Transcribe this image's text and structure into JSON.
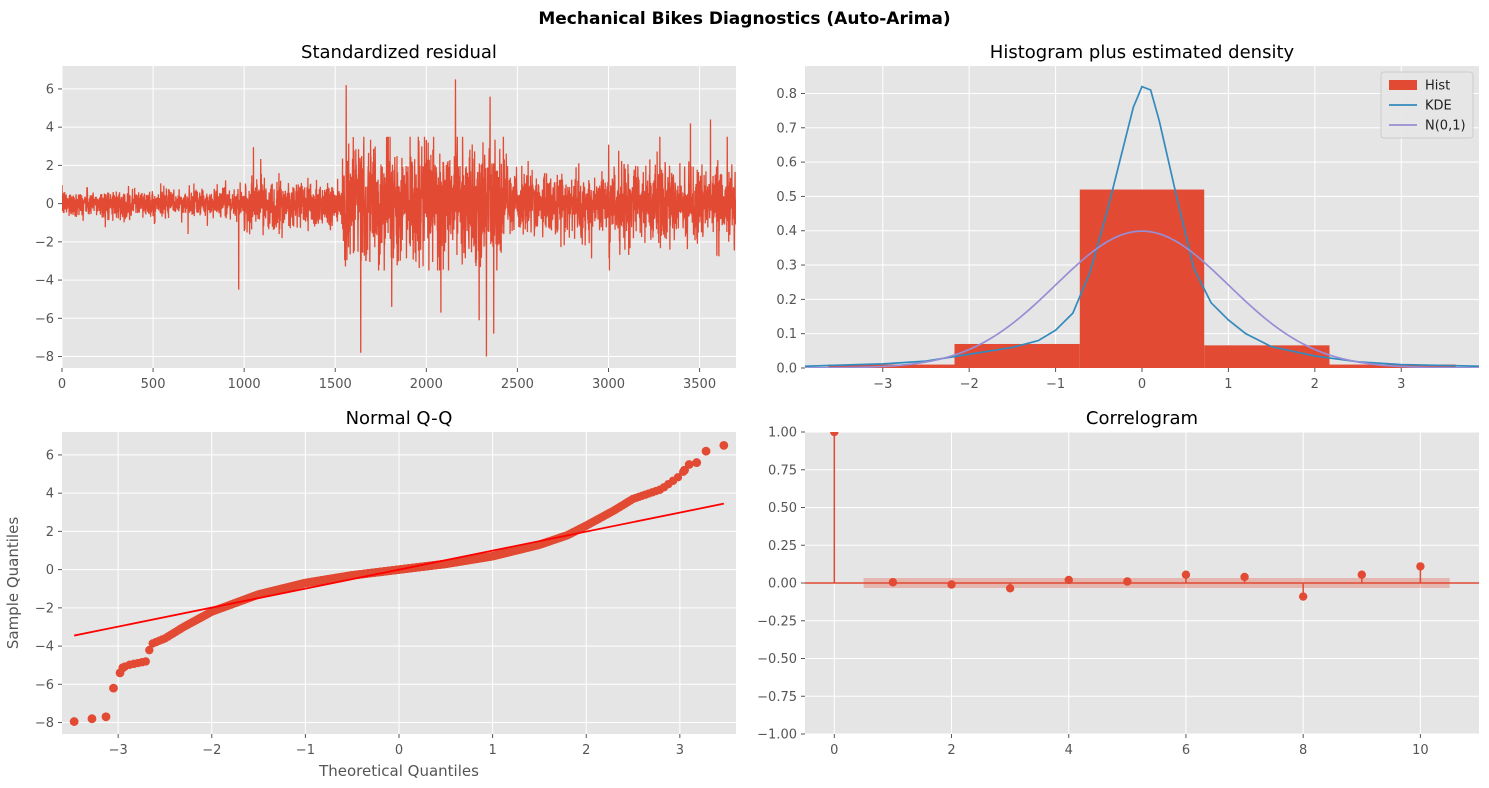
{
  "figure_title": "Mechanical Bikes Diagnostics (Auto-Arima)",
  "colors": {
    "axes_bg": "#e5e5e5",
    "grid": "#ffffff",
    "red": "#e24a33",
    "blue": "#348abd",
    "purple": "#988ed5",
    "qq_line": "#ff0000",
    "tick_text": "#555555"
  },
  "chart_data": [
    {
      "id": "resid",
      "type": "line",
      "title": "Standardized residual",
      "xlabel": "",
      "ylabel": "",
      "xlim": [
        0,
        3700
      ],
      "ylim": [
        -8.6,
        7.2
      ],
      "xticks": [
        0,
        500,
        1000,
        1500,
        2000,
        2500,
        3000,
        3500
      ],
      "yticks": [
        -8,
        -6,
        -4,
        -2,
        0,
        2,
        4,
        6
      ],
      "grid": true,
      "n_points": 3700,
      "regimes": [
        {
          "x": [
            0,
            1000
          ],
          "scale": 0.35
        },
        {
          "x": [
            1000,
            1540
          ],
          "scale": 0.65
        },
        {
          "x": [
            1540,
            2450
          ],
          "scale": 1.45
        },
        {
          "x": [
            2450,
            3000
          ],
          "scale": 0.8
        },
        {
          "x": [
            3000,
            3700
          ],
          "scale": 0.95
        }
      ],
      "notable_points": [
        {
          "x": 970,
          "y": -4.5
        },
        {
          "x": 1560,
          "y": 6.2
        },
        {
          "x": 1640,
          "y": -7.8
        },
        {
          "x": 1810,
          "y": -5.4
        },
        {
          "x": 2080,
          "y": -5.7
        },
        {
          "x": 2160,
          "y": 6.5
        },
        {
          "x": 2290,
          "y": -6.1
        },
        {
          "x": 2330,
          "y": -8.0
        },
        {
          "x": 2370,
          "y": -6.8
        },
        {
          "x": 2350,
          "y": 5.6
        },
        {
          "x": 3450,
          "y": 4.2
        },
        {
          "x": 3560,
          "y": 4.4
        }
      ]
    },
    {
      "id": "hist",
      "type": "bar",
      "title": "Histogram plus estimated density",
      "xlim": [
        -3.9,
        3.9
      ],
      "ylim": [
        0,
        0.88
      ],
      "xticks": [
        -3,
        -2,
        -1,
        0,
        1,
        2,
        3
      ],
      "yticks": [
        0.0,
        0.1,
        0.2,
        0.3,
        0.4,
        0.5,
        0.6,
        0.7,
        0.8
      ],
      "grid": true,
      "legend": {
        "position": "top-right",
        "entries": [
          "Hist",
          "KDE",
          "N(0,1)"
        ]
      },
      "hist_bins": [
        {
          "left": -3.63,
          "right": -2.17,
          "height": 0.01
        },
        {
          "left": -2.17,
          "right": -0.72,
          "height": 0.07
        },
        {
          "left": -0.72,
          "right": 0.72,
          "height": 0.52
        },
        {
          "left": 0.72,
          "right": 2.17,
          "height": 0.066
        },
        {
          "left": 2.17,
          "right": 3.63,
          "height": 0.01
        }
      ],
      "kde": {
        "x": [
          -3.9,
          -3.0,
          -2.5,
          -2.0,
          -1.5,
          -1.2,
          -1.0,
          -0.8,
          -0.6,
          -0.4,
          -0.2,
          -0.1,
          0.0,
          0.1,
          0.2,
          0.4,
          0.6,
          0.8,
          1.0,
          1.2,
          1.5,
          2.0,
          2.5,
          3.0,
          3.9
        ],
        "y": [
          0.005,
          0.012,
          0.02,
          0.04,
          0.06,
          0.08,
          0.11,
          0.16,
          0.28,
          0.46,
          0.66,
          0.76,
          0.82,
          0.81,
          0.72,
          0.5,
          0.29,
          0.19,
          0.14,
          0.1,
          0.062,
          0.035,
          0.018,
          0.01,
          0.005
        ]
      },
      "normal": {
        "mean": 0,
        "sd": 1
      }
    },
    {
      "id": "qq",
      "type": "scatter",
      "title": "Normal Q-Q",
      "xlabel": "Theoretical Quantiles",
      "ylabel": "Sample Quantiles",
      "xlim": [
        -3.6,
        3.6
      ],
      "ylim": [
        -8.6,
        7.2
      ],
      "xticks": [
        -3,
        -2,
        -1,
        0,
        1,
        2,
        3
      ],
      "yticks": [
        -8,
        -6,
        -4,
        -2,
        0,
        2,
        4,
        6
      ],
      "grid": true,
      "reference_line": {
        "x": [
          -3.47,
          3.47
        ],
        "y": [
          -3.45,
          3.45
        ]
      },
      "curve": {
        "x": [
          -3.47,
          -3.3,
          -3.15,
          -3.1,
          -3.05,
          -2.9,
          -2.7,
          -2.65,
          -2.5,
          -2.3,
          -2.0,
          -1.5,
          -1.0,
          -0.5,
          0.0,
          0.5,
          1.0,
          1.5,
          1.8,
          2.0,
          2.3,
          2.5,
          2.8,
          3.0,
          3.1,
          3.3
        ],
        "y": [
          -7.95,
          -7.8,
          -7.7,
          -6.2,
          -5.4,
          -5.0,
          -4.8,
          -3.9,
          -3.6,
          -3.0,
          -2.2,
          -1.3,
          -0.7,
          -0.3,
          0.0,
          0.3,
          0.7,
          1.3,
          1.8,
          2.3,
          3.1,
          3.7,
          4.2,
          4.9,
          5.5,
          5.6
        ]
      },
      "extreme_points": [
        {
          "x": -3.47,
          "y": -7.95
        },
        {
          "x": -3.28,
          "y": -7.8
        },
        {
          "x": -3.13,
          "y": -7.7
        },
        {
          "x": -3.05,
          "y": -6.2
        },
        {
          "x": -2.98,
          "y": -5.4
        },
        {
          "x": 3.28,
          "y": 6.2
        },
        {
          "x": 3.47,
          "y": 6.5
        },
        {
          "x": 3.1,
          "y": 5.5
        },
        {
          "x": 3.18,
          "y": 5.6
        }
      ]
    },
    {
      "id": "acf",
      "type": "scatter",
      "title": "Correlogram",
      "xlim": [
        -0.5,
        11
      ],
      "ylim": [
        -1.0,
        1.0
      ],
      "xticks": [
        0,
        2,
        4,
        6,
        8,
        10
      ],
      "yticks": [
        -1.0,
        -0.75,
        -0.5,
        -0.25,
        0.0,
        0.25,
        0.5,
        0.75,
        1.0
      ],
      "ytick_labels": [
        "−1.00",
        "−0.75",
        "−0.50",
        "−0.25",
        "0.00",
        "0.25",
        "0.50",
        "0.75",
        "1.00"
      ],
      "grid": true,
      "lags": [
        0,
        1,
        2,
        3,
        4,
        5,
        6,
        7,
        8,
        9,
        10
      ],
      "values": [
        1.0,
        0.005,
        -0.01,
        -0.035,
        0.02,
        0.01,
        0.055,
        0.04,
        -0.09,
        0.055,
        0.11
      ],
      "confidence_band": {
        "x": [
          0.5,
          10.5
        ],
        "y": [
          -0.033,
          0.033
        ]
      }
    }
  ]
}
